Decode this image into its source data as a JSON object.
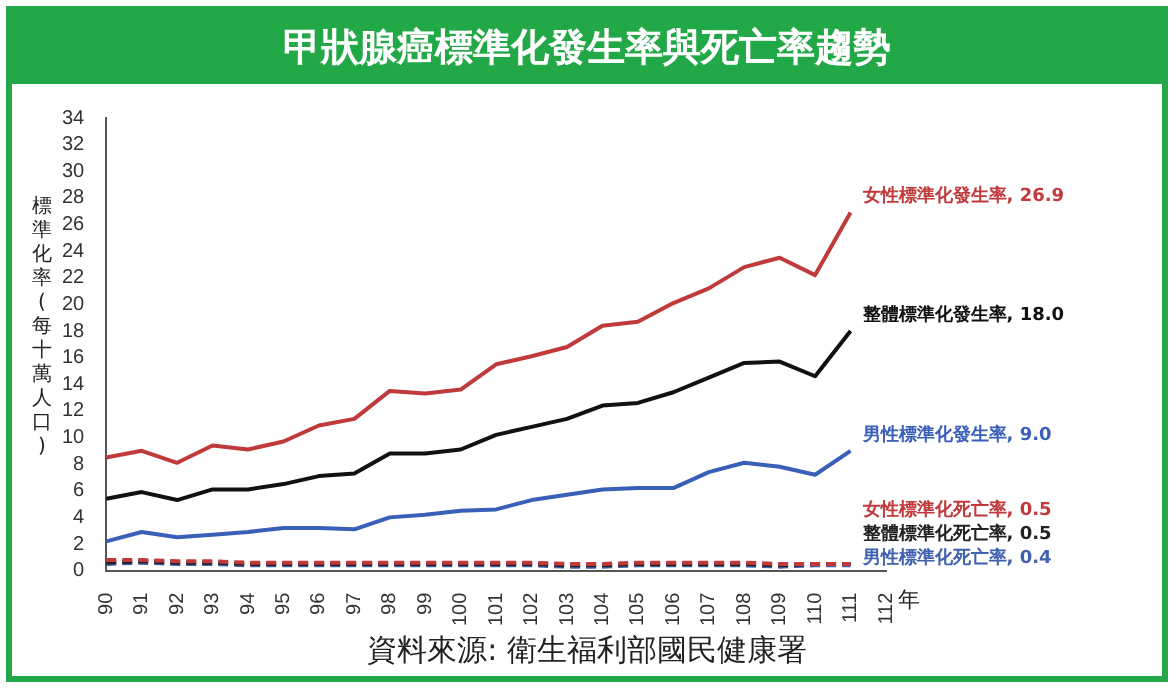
{
  "chart_data": {
    "type": "line",
    "title": "甲狀腺癌標準化發生率與死亡率趨勢",
    "ylabel": "標準化率(每十萬人口)",
    "xlabel": "年",
    "categories": [
      "90",
      "91",
      "92",
      "93",
      "94",
      "95",
      "96",
      "97",
      "98",
      "99",
      "100",
      "101",
      "102",
      "103",
      "104",
      "105",
      "106",
      "107",
      "108",
      "109",
      "110",
      "111",
      "112"
    ],
    "series": [
      {
        "name": "女性標準化發生率,",
        "color": "#c0393b",
        "line_style": "solid",
        "values": [
          8.5,
          9.0,
          8.1,
          9.4,
          9.1,
          9.7,
          10.9,
          11.4,
          13.5,
          13.3,
          13.6,
          15.5,
          16.1,
          16.8,
          18.4,
          18.7,
          20.1,
          21.2,
          22.8,
          23.5,
          22.2,
          26.9,
          null
        ],
        "value_labels": [
          null,
          null,
          null,
          null,
          null,
          null,
          null,
          null,
          null,
          null,
          null,
          null,
          null,
          null,
          null,
          null,
          null,
          null,
          null,
          null,
          null,
          "26.9",
          null
        ]
      },
      {
        "name": "整體標準化發生率,",
        "color": "#111111",
        "line_style": "solid",
        "values": [
          5.4,
          5.9,
          5.3,
          6.1,
          6.1,
          6.5,
          7.1,
          7.3,
          8.8,
          8.8,
          9.1,
          10.2,
          10.8,
          11.4,
          12.4,
          12.6,
          13.4,
          14.5,
          15.6,
          15.7,
          14.6,
          18.0,
          null
        ],
        "value_labels": [
          null,
          null,
          null,
          null,
          null,
          null,
          null,
          null,
          null,
          null,
          null,
          null,
          null,
          null,
          null,
          null,
          null,
          null,
          null,
          null,
          null,
          "18.0",
          null
        ]
      },
      {
        "name": "男性標準化發生率,",
        "color": "#3a5fb8",
        "line_style": "solid",
        "values": [
          2.2,
          2.9,
          2.5,
          2.7,
          2.9,
          3.2,
          3.2,
          3.1,
          4.0,
          4.2,
          4.5,
          4.6,
          5.3,
          5.7,
          6.1,
          6.2,
          6.2,
          7.4,
          8.1,
          7.8,
          7.2,
          9.0,
          null
        ],
        "value_labels": [
          null,
          null,
          null,
          null,
          null,
          null,
          null,
          null,
          null,
          null,
          null,
          null,
          null,
          null,
          null,
          null,
          null,
          null,
          null,
          null,
          null,
          "9.0",
          null
        ]
      },
      {
        "name": "女性標準化死亡率,",
        "color": "#c0393b",
        "line_style": "dashed",
        "values": [
          0.8,
          0.8,
          0.7,
          0.7,
          0.6,
          0.6,
          0.6,
          0.6,
          0.6,
          0.6,
          0.6,
          0.6,
          0.6,
          0.5,
          0.5,
          0.6,
          0.6,
          0.6,
          0.6,
          0.5,
          0.5,
          0.5,
          null
        ],
        "value_labels": [
          null,
          null,
          null,
          null,
          null,
          null,
          null,
          null,
          null,
          null,
          null,
          null,
          null,
          null,
          null,
          null,
          null,
          null,
          null,
          null,
          null,
          "0.5",
          null
        ]
      },
      {
        "name": "整體標準化死亡率,",
        "color": "#222222",
        "line_style": "dashed",
        "values": [
          0.6,
          0.7,
          0.6,
          0.6,
          0.5,
          0.5,
          0.5,
          0.5,
          0.5,
          0.5,
          0.5,
          0.5,
          0.5,
          0.4,
          0.4,
          0.5,
          0.5,
          0.5,
          0.5,
          0.4,
          0.5,
          0.5,
          null
        ],
        "value_labels": [
          null,
          null,
          null,
          null,
          null,
          null,
          null,
          null,
          null,
          null,
          null,
          null,
          null,
          null,
          null,
          null,
          null,
          null,
          null,
          null,
          null,
          "0.5",
          null
        ]
      },
      {
        "name": "男性標準化死亡率,",
        "color": "#4060b0",
        "line_style": "dashed",
        "values": [
          0.5,
          0.6,
          0.5,
          0.5,
          0.4,
          0.4,
          0.4,
          0.4,
          0.4,
          0.4,
          0.4,
          0.4,
          0.4,
          0.3,
          0.3,
          0.4,
          0.4,
          0.4,
          0.4,
          0.3,
          0.4,
          0.4,
          null
        ],
        "value_labels": [
          null,
          null,
          null,
          null,
          null,
          null,
          null,
          null,
          null,
          null,
          null,
          null,
          null,
          null,
          null,
          null,
          null,
          null,
          null,
          null,
          null,
          "0.4",
          null
        ]
      }
    ],
    "ylim": [
      0,
      34
    ],
    "yticks": [
      0,
      2,
      4,
      6,
      8,
      10,
      12,
      14,
      16,
      18,
      20,
      22,
      24,
      26,
      28,
      30,
      32,
      34
    ],
    "grid": false,
    "legend": false,
    "marker": "none",
    "annotations": [
      "資料來源: 衛生福利部國民健康署"
    ]
  }
}
